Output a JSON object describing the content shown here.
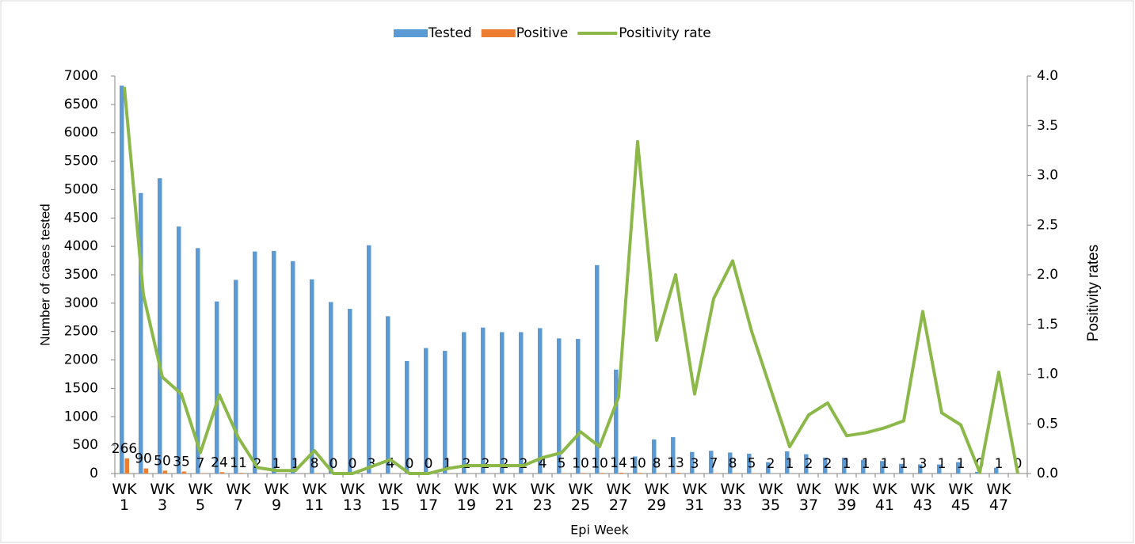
{
  "chart_data": {
    "type": "bar_line",
    "legend": "top",
    "x_label": "Epi Week",
    "y_label": "Number of cases tested",
    "y2_label": "Positivity rates",
    "categories": [
      "WK 1",
      null,
      "WK 3",
      null,
      "WK 5",
      null,
      "WK 7",
      null,
      "WK 9",
      null,
      "WK 11",
      null,
      "WK 13",
      null,
      "WK 15",
      null,
      "WK 17",
      null,
      "WK 19",
      null,
      "WK 21",
      null,
      "WK 23",
      null,
      "WK 25",
      null,
      "WK 27",
      null,
      "WK 29",
      null,
      "WK 31",
      null,
      "WK 33",
      null,
      "WK 35",
      null,
      "WK 37",
      null,
      "WK 39",
      null,
      "WK 41",
      null,
      "WK 43",
      null,
      "WK 45",
      null,
      "WK 47",
      null
    ],
    "series": [
      {
        "name": "Tested",
        "type": "bar",
        "color": "#5b9bd5",
        "values": [
          6830,
          4940,
          5200,
          4350,
          3970,
          3030,
          3410,
          3910,
          3920,
          3740,
          3420,
          3020,
          2900,
          4020,
          2770,
          1980,
          2210,
          2160,
          2490,
          2570,
          2490,
          2490,
          2560,
          2380,
          2370,
          3670,
          1830,
          300,
          600,
          640,
          380,
          400,
          370,
          350,
          200,
          390,
          340,
          280,
          280,
          240,
          220,
          170,
          160,
          160,
          200,
          30,
          100,
          0
        ]
      },
      {
        "name": "Positive",
        "type": "bar",
        "color": "#ed7d31",
        "show_labels": true,
        "values": [
          266,
          90,
          50,
          35,
          7,
          24,
          11,
          2,
          1,
          1,
          8,
          0,
          0,
          3,
          4,
          0,
          0,
          1,
          2,
          2,
          2,
          2,
          4,
          5,
          10,
          10,
          14,
          10,
          8,
          13,
          3,
          7,
          8,
          5,
          2,
          1,
          2,
          2,
          1,
          1,
          1,
          1,
          3,
          1,
          1,
          0,
          1,
          0
        ]
      },
      {
        "name": "Positivity rate",
        "type": "line",
        "axis": "y2",
        "color": "#8cb84a",
        "values": [
          3.89,
          1.8,
          0.97,
          0.8,
          0.21,
          0.79,
          0.36,
          0.06,
          0.03,
          0.03,
          0.23,
          0,
          0,
          0.07,
          0.14,
          0,
          0,
          0.05,
          0.08,
          0.08,
          0.08,
          0.08,
          0.16,
          0.21,
          0.42,
          0.27,
          0.77,
          3.34,
          1.34,
          2.0,
          0.8,
          1.76,
          2.14,
          1.43,
          0.85,
          0.27,
          0.59,
          0.71,
          0.38,
          0.41,
          0.46,
          0.53,
          1.63,
          0.61,
          0.49,
          0.01,
          1.02,
          0
        ]
      }
    ],
    "ylim": [
      0,
      7000
    ],
    "yticks": [
      0,
      500,
      1000,
      1500,
      2000,
      2500,
      3000,
      3500,
      4000,
      4500,
      5000,
      5500,
      6000,
      6500,
      7000
    ],
    "y2lim": [
      0,
      4
    ],
    "y2ticks": [
      {
        "value": 0,
        "label": "0.0"
      },
      0.5,
      {
        "value": 1,
        "label": "1.0"
      },
      1.5,
      {
        "value": 2,
        "label": "2.0"
      },
      2.5,
      {
        "value": 3,
        "label": "3.0"
      },
      3.5,
      {
        "value": 4,
        "label": "4.0"
      }
    ]
  }
}
